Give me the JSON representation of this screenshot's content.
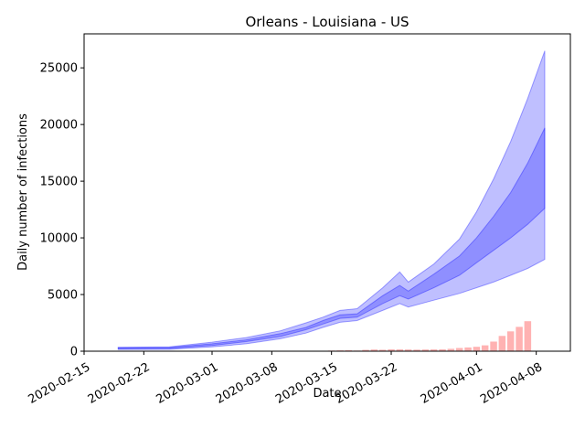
{
  "chart_data": {
    "type": "area",
    "title": "Orleans - Louisiana - US",
    "xlabel": "Date",
    "ylabel": "Daily number of infections",
    "x_ticks": [
      "2020-02-15",
      "2020-02-22",
      "2020-03-01",
      "2020-03-08",
      "2020-03-15",
      "2020-03-22",
      "2020-04-01",
      "2020-04-08"
    ],
    "y_ticks": [
      0,
      5000,
      10000,
      15000,
      20000,
      25000
    ],
    "xlim": [
      "2020-02-15",
      "2020-04-12"
    ],
    "ylim": [
      0,
      28000
    ],
    "grid": false,
    "colors": {
      "band": "#0000ff",
      "bars": "#ff6666"
    },
    "bands": {
      "x": [
        "2020-02-19",
        "2020-02-25",
        "2020-03-01",
        "2020-03-05",
        "2020-03-09",
        "2020-03-12",
        "2020-03-14",
        "2020-03-16",
        "2020-03-18",
        "2020-03-21",
        "2020-03-23",
        "2020-03-24",
        "2020-03-27",
        "2020-03-30",
        "2020-04-01",
        "2020-04-03",
        "2020-04-05",
        "2020-04-07",
        "2020-04-09"
      ],
      "outer_low": [
        150,
        160,
        380,
        650,
        1100,
        1600,
        2100,
        2550,
        2700,
        3600,
        4200,
        3900,
        4500,
        5100,
        5600,
        6100,
        6700,
        7300,
        8100
      ],
      "outer_high": [
        350,
        380,
        800,
        1200,
        1800,
        2500,
        3000,
        3600,
        3750,
        5600,
        7000,
        6100,
        7700,
        9900,
        12300,
        15200,
        18500,
        22300,
        26500
      ],
      "inner_low": [
        220,
        240,
        500,
        850,
        1300,
        1900,
        2400,
        2900,
        3000,
        4200,
        4900,
        4600,
        5600,
        6700,
        7800,
        8900,
        10000,
        11200,
        12600
      ],
      "inner_high": [
        300,
        320,
        650,
        1000,
        1550,
        2100,
        2700,
        3200,
        3300,
        4900,
        5800,
        5300,
        6800,
        8400,
        10000,
        11900,
        14000,
        16600,
        19700
      ]
    },
    "bars": {
      "x": [
        "2020-03-09",
        "2020-03-12",
        "2020-03-14",
        "2020-03-15",
        "2020-03-16",
        "2020-03-17",
        "2020-03-18",
        "2020-03-19",
        "2020-03-20",
        "2020-03-21",
        "2020-03-22",
        "2020-03-23",
        "2020-03-24",
        "2020-03-25",
        "2020-03-26",
        "2020-03-27",
        "2020-03-28",
        "2020-03-29",
        "2020-03-30",
        "2020-03-31",
        "2020-04-01",
        "2020-04-02",
        "2020-04-03",
        "2020-04-04",
        "2020-04-05",
        "2020-04-06"
      ],
      "values": [
        10,
        20,
        40,
        60,
        70,
        90,
        60,
        120,
        150,
        130,
        170,
        160,
        150,
        140,
        150,
        160,
        170,
        210,
        280,
        330,
        390,
        520,
        850,
        1350,
        1750,
        2150
      ]
    },
    "bars_extra": {
      "x": [
        "2020-04-07"
      ],
      "values": [
        2650
      ]
    }
  }
}
